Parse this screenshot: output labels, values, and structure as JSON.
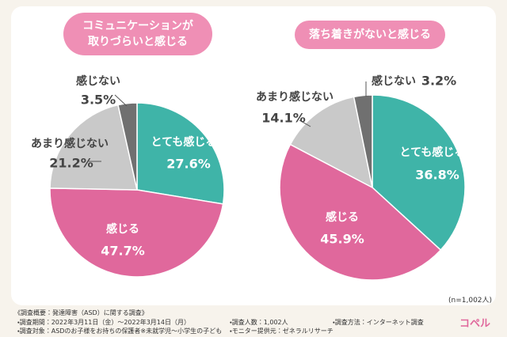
{
  "chart_data": [
    {
      "type": "pie",
      "title": "コミュニケーションが\n取りづらいと感じる",
      "categories": [
        "とても感じる",
        "感じる",
        "あまり感じない",
        "感じない"
      ],
      "values": [
        27.6,
        47.7,
        21.2,
        3.5
      ],
      "value_labels": [
        "27.6%",
        "47.7%",
        "21.2%",
        "3.5%"
      ],
      "colors": [
        "#3fb4a8",
        "#e0689c",
        "#c9c9c9",
        "#707070"
      ]
    },
    {
      "type": "pie",
      "title": "落ち着きがないと感じる",
      "categories": [
        "とても感じる",
        "感じる",
        "あまり感じない",
        "感じない"
      ],
      "values": [
        36.8,
        45.9,
        14.1,
        3.2
      ],
      "value_labels": [
        "36.8%",
        "45.9%",
        "14.1%",
        "3.2%"
      ],
      "colors": [
        "#3fb4a8",
        "#e0689c",
        "#c9c9c9",
        "#707070"
      ]
    }
  ],
  "sample_size": "(n=1,002人)",
  "survey": {
    "heading": "《調査概要：発達障害（ASD）に関する調査》",
    "period": "・調査期間：2022年3月11日（金）〜2022年3月14日（月）",
    "count": "・調査人数：1,002人",
    "method": "・調査方法：インターネット調査",
    "target": "・調査対象：ASDのお子様をお持ちの保護者※未就学児〜小学生の子ども",
    "provider": "・モニター提供元：ゼネラルリサーチ"
  },
  "logo": "コペル"
}
